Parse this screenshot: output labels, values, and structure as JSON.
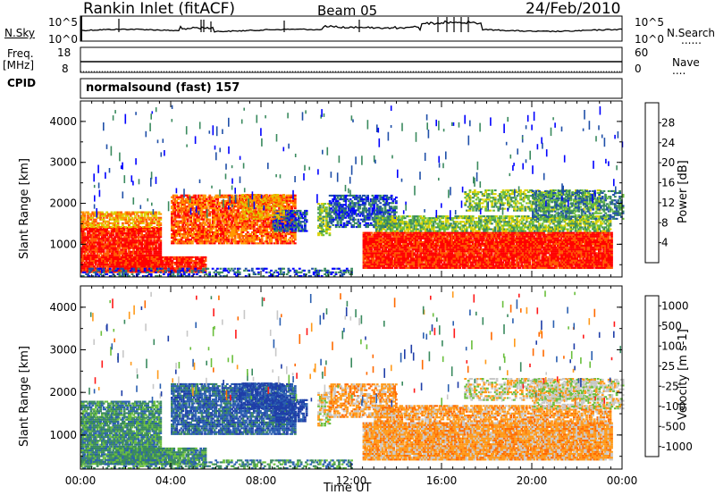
{
  "header": {
    "station": "Rankin Inlet (fitACF)",
    "beam": "Beam 05",
    "date": "24/Feb/2010"
  },
  "panel_labels": {
    "nsky": "N.Sky",
    "freq_line1": "Freq.",
    "freq_line2": "[MHz]",
    "cpid": "CPID",
    "nsearch": "N.Search",
    "nave": "Nave",
    "dots": "......",
    "dots_short": "...."
  },
  "top_axis": {
    "left_top": "10^5",
    "left_bottom": "10^0",
    "right_top": "10^5",
    "right_bottom": "10^0",
    "freq_top": "18",
    "freq_bottom": "8",
    "nave_top": "60",
    "nave_bottom": "0"
  },
  "cpid_text": "normalsound (fast) 157",
  "colors": {
    "power_scale": [
      "#0000ff",
      "#1f4fa8",
      "#3a8a5e",
      "#6abf3c",
      "#d9d200",
      "#ff9a00",
      "#ff5a00",
      "#ff0000"
    ],
    "velocity_scale": [
      "#1f3ea8",
      "#2a5fb0",
      "#3a8a5e",
      "#6abf3c",
      "#c8c8c8",
      "#ff9a1a",
      "#ff6a00",
      "#ff1a1a"
    ]
  },
  "chart_data": [
    {
      "type": "heatmap",
      "title": "",
      "xlabel": "Time UT",
      "ylabel": "Slant Range [km]",
      "x_ticks": [
        "00:00",
        "04:00",
        "08:00",
        "12:00",
        "16:00",
        "20:00",
        "00:00"
      ],
      "y_ticks": [
        "1000",
        "2000",
        "3000",
        "4000"
      ],
      "ylim": [
        200,
        4500
      ],
      "xlim_hours": [
        0,
        24
      ],
      "colorbar_label": "Power [dB]",
      "colorbar_ticks": [
        "4",
        "8",
        "12",
        "16",
        "20",
        "24",
        "28"
      ]
    },
    {
      "type": "heatmap",
      "title": "",
      "xlabel": "Time UT",
      "ylabel": "Slant Range [km]",
      "x_ticks": [
        "00:00",
        "04:00",
        "08:00",
        "12:00",
        "16:00",
        "20:00",
        "00:00"
      ],
      "y_ticks": [
        "1000",
        "2000",
        "3000",
        "4000"
      ],
      "ylim": [
        200,
        4500
      ],
      "xlim_hours": [
        0,
        24
      ],
      "colorbar_label": "Velocity [m s-1]",
      "colorbar_ticks": [
        "1000",
        "500",
        "100",
        "25",
        "-25",
        "-100",
        "-500",
        "-1000"
      ]
    }
  ]
}
